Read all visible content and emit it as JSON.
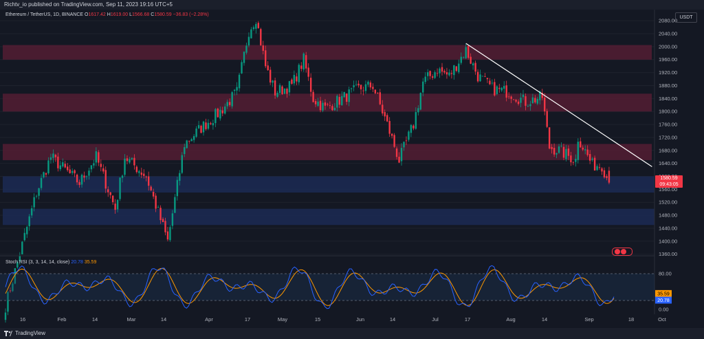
{
  "publish_text": "Richtv_io published on TradingView.com, Sep 11, 2023 19:16 UTC+5",
  "footer_brand": "TradingView",
  "legend": {
    "symbol": "Ethereum / TetherUS, 1D, BINANCE",
    "open_label": "O",
    "open": "1617.42",
    "high_label": "H",
    "high": "1619.00",
    "low_label": "L",
    "low": "1566.68",
    "close_label": "C",
    "close": "1580.59",
    "change": "−36.83 (−2.28%)"
  },
  "currency_label": "USDT",
  "current_price": {
    "price": "1580.59",
    "countdown": "09:43:05"
  },
  "rsi": {
    "title": "Stoch RSI (3, 3, 14, 14, close)",
    "k_value": "20.78",
    "d_value": "35.59",
    "ticks": [
      "80.00",
      "0.00"
    ],
    "k_color": "#2962ff",
    "d_color": "#ff9800"
  },
  "colors": {
    "up": "#089981",
    "down": "#f23645",
    "zone_red": "#5b1e36",
    "zone_blue": "#1c2c56",
    "trendline": "#ffffff"
  },
  "chart_data": {
    "type": "candlestick",
    "ylim": [
      1350,
      2120
    ],
    "y_ticks": [
      1360,
      1400,
      1440,
      1480,
      1520,
      1560,
      1600,
      1640,
      1680,
      1720,
      1760,
      1800,
      1840,
      1880,
      1920,
      1960,
      2000,
      2040,
      2080
    ],
    "x_ticks": [
      "16",
      "Feb",
      "14",
      "Mar",
      "14",
      "Apr",
      "17",
      "May",
      "15",
      "Jun",
      "14",
      "Jul",
      "17",
      "Aug",
      "14",
      "Sep",
      "18",
      "Oct"
    ],
    "red_zones": [
      [
        1960,
        2005
      ],
      [
        1800,
        1855
      ],
      [
        1650,
        1700
      ]
    ],
    "blue_zones": [
      [
        1550,
        1600
      ],
      [
        1450,
        1500
      ]
    ],
    "trendline": {
      "from": {
        "date": "2023-07-13",
        "price": 2010
      },
      "to": {
        "date": "2023-09-29",
        "price": 1630
      }
    },
    "close_series": [
      {
        "date": "2023-01-01",
        "close": 1200
      },
      {
        "date": "2023-01-14",
        "close": 1550
      },
      {
        "date": "2023-01-20",
        "close": 1660
      },
      {
        "date": "2023-02-01",
        "close": 1580
      },
      {
        "date": "2023-02-08",
        "close": 1660
      },
      {
        "date": "2023-02-16",
        "close": 1500
      },
      {
        "date": "2023-02-20",
        "close": 1660
      },
      {
        "date": "2023-03-01",
        "close": 1600
      },
      {
        "date": "2023-03-10",
        "close": 1400
      },
      {
        "date": "2023-03-17",
        "close": 1700
      },
      {
        "date": "2023-03-24",
        "close": 1750
      },
      {
        "date": "2023-04-01",
        "close": 1800
      },
      {
        "date": "2023-04-08",
        "close": 1860
      },
      {
        "date": "2023-04-13",
        "close": 2050
      },
      {
        "date": "2023-04-16",
        "close": 2090
      },
      {
        "date": "2023-04-20",
        "close": 1940
      },
      {
        "date": "2023-04-24",
        "close": 1860
      },
      {
        "date": "2023-05-01",
        "close": 1880
      },
      {
        "date": "2023-05-06",
        "close": 1960
      },
      {
        "date": "2023-05-10",
        "close": 1840
      },
      {
        "date": "2023-05-15",
        "close": 1810
      },
      {
        "date": "2023-05-29",
        "close": 1870
      },
      {
        "date": "2023-06-04",
        "close": 1880
      },
      {
        "date": "2023-06-10",
        "close": 1760
      },
      {
        "date": "2023-06-15",
        "close": 1650
      },
      {
        "date": "2023-06-21",
        "close": 1760
      },
      {
        "date": "2023-06-25",
        "close": 1890
      },
      {
        "date": "2023-07-01",
        "close": 1930
      },
      {
        "date": "2023-07-06",
        "close": 1910
      },
      {
        "date": "2023-07-13",
        "close": 1990
      },
      {
        "date": "2023-07-18",
        "close": 1910
      },
      {
        "date": "2023-07-24",
        "close": 1870
      },
      {
        "date": "2023-07-31",
        "close": 1860
      },
      {
        "date": "2023-08-07",
        "close": 1830
      },
      {
        "date": "2023-08-14",
        "close": 1845
      },
      {
        "date": "2023-08-17",
        "close": 1690
      },
      {
        "date": "2023-08-21",
        "close": 1680
      },
      {
        "date": "2023-08-28",
        "close": 1650
      },
      {
        "date": "2023-08-29",
        "close": 1720
      },
      {
        "date": "2023-09-04",
        "close": 1635
      },
      {
        "date": "2023-09-08",
        "close": 1635
      },
      {
        "date": "2023-09-11",
        "close": 1580
      }
    ]
  }
}
